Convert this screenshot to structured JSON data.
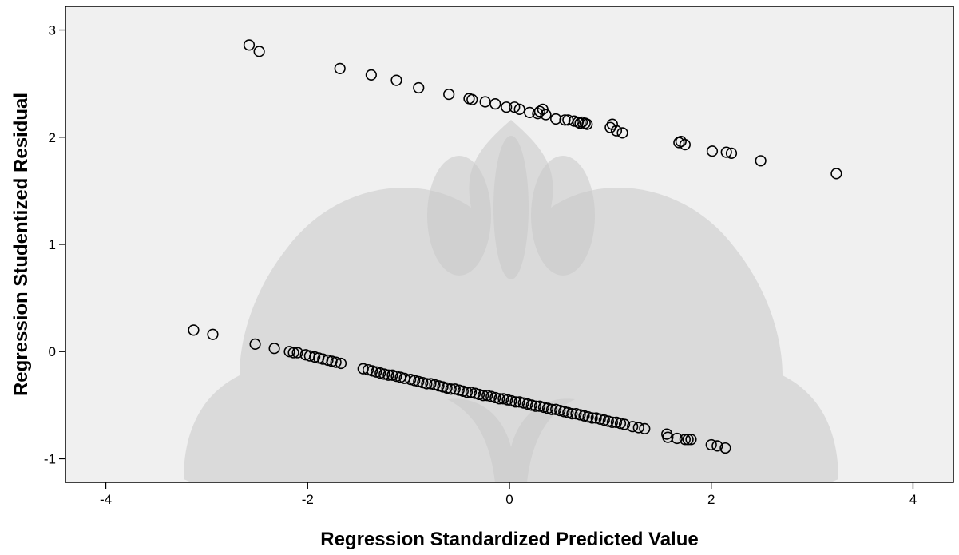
{
  "chart_data": {
    "type": "scatter",
    "title": "",
    "xlabel": "Regression Standardized Predicted Value",
    "ylabel": "Regression Studentized Residual",
    "xlim": [
      -4.4,
      4.4
    ],
    "ylim": [
      -1.22,
      3.22
    ],
    "xticks": [
      -4,
      -2,
      0,
      2,
      4
    ],
    "xtick_labels": [
      "-4",
      "-2",
      "0",
      "2",
      "4"
    ],
    "yticks": [
      -1,
      0,
      1,
      2,
      3
    ],
    "ytick_labels": [
      "-1",
      "0",
      "1",
      "2",
      "3"
    ],
    "grid": false,
    "background_color": "#f0f0f0",
    "marker": "open-circle",
    "series": [
      {
        "points": [
          [
            -2.58,
            2.86
          ],
          [
            -2.48,
            2.8
          ],
          [
            -1.68,
            2.64
          ],
          [
            -1.37,
            2.58
          ],
          [
            -1.12,
            2.53
          ],
          [
            -0.9,
            2.46
          ],
          [
            -0.6,
            2.4
          ],
          [
            -0.4,
            2.36
          ],
          [
            -0.37,
            2.35
          ],
          [
            -0.24,
            2.33
          ],
          [
            -0.14,
            2.31
          ],
          [
            -0.03,
            2.28
          ],
          [
            0.05,
            2.28
          ],
          [
            0.1,
            2.26
          ],
          [
            0.2,
            2.23
          ],
          [
            0.28,
            2.22
          ],
          [
            0.3,
            2.24
          ],
          [
            0.33,
            2.26
          ],
          [
            0.36,
            2.21
          ],
          [
            0.46,
            2.17
          ],
          [
            0.55,
            2.16
          ],
          [
            0.58,
            2.16
          ],
          [
            0.64,
            2.15
          ],
          [
            0.68,
            2.14
          ],
          [
            0.7,
            2.13
          ],
          [
            0.72,
            2.14
          ],
          [
            0.75,
            2.13
          ],
          [
            0.77,
            2.12
          ],
          [
            1.0,
            2.09
          ],
          [
            1.02,
            2.12
          ],
          [
            1.06,
            2.06
          ],
          [
            1.12,
            2.04
          ],
          [
            1.68,
            1.95
          ],
          [
            1.7,
            1.96
          ],
          [
            1.74,
            1.93
          ],
          [
            2.01,
            1.87
          ],
          [
            2.15,
            1.86
          ],
          [
            2.2,
            1.85
          ],
          [
            2.49,
            1.78
          ],
          [
            3.24,
            1.66
          ]
        ]
      },
      {
        "points": [
          [
            -3.13,
            0.2
          ],
          [
            -2.94,
            0.16
          ],
          [
            -2.52,
            0.07
          ],
          [
            -2.33,
            0.03
          ],
          [
            -2.18,
            0.0
          ],
          [
            -2.14,
            -0.01
          ],
          [
            -2.1,
            -0.01
          ],
          [
            -2.02,
            -0.03
          ],
          [
            -1.98,
            -0.04
          ],
          [
            -1.93,
            -0.05
          ],
          [
            -1.89,
            -0.06
          ],
          [
            -1.85,
            -0.07
          ],
          [
            -1.8,
            -0.08
          ],
          [
            -1.76,
            -0.09
          ],
          [
            -1.72,
            -0.1
          ],
          [
            -1.67,
            -0.11
          ],
          [
            -1.45,
            -0.16
          ],
          [
            -1.4,
            -0.17
          ],
          [
            -1.36,
            -0.18
          ],
          [
            -1.32,
            -0.19
          ],
          [
            -1.28,
            -0.2
          ],
          [
            -1.24,
            -0.21
          ],
          [
            -1.2,
            -0.22
          ],
          [
            -1.16,
            -0.22
          ],
          [
            -1.12,
            -0.23
          ],
          [
            -1.08,
            -0.24
          ],
          [
            -1.04,
            -0.25
          ],
          [
            -0.98,
            -0.26
          ],
          [
            -0.94,
            -0.27
          ],
          [
            -0.9,
            -0.28
          ],
          [
            -0.86,
            -0.29
          ],
          [
            -0.82,
            -0.3
          ],
          [
            -0.78,
            -0.3
          ],
          [
            -0.74,
            -0.31
          ],
          [
            -0.7,
            -0.32
          ],
          [
            -0.66,
            -0.33
          ],
          [
            -0.62,
            -0.34
          ],
          [
            -0.58,
            -0.35
          ],
          [
            -0.54,
            -0.35
          ],
          [
            -0.5,
            -0.36
          ],
          [
            -0.46,
            -0.37
          ],
          [
            -0.42,
            -0.38
          ],
          [
            -0.38,
            -0.38
          ],
          [
            -0.34,
            -0.39
          ],
          [
            -0.3,
            -0.4
          ],
          [
            -0.26,
            -0.41
          ],
          [
            -0.22,
            -0.41
          ],
          [
            -0.18,
            -0.42
          ],
          [
            -0.14,
            -0.43
          ],
          [
            -0.1,
            -0.44
          ],
          [
            -0.06,
            -0.44
          ],
          [
            -0.02,
            -0.45
          ],
          [
            0.02,
            -0.46
          ],
          [
            0.06,
            -0.47
          ],
          [
            0.1,
            -0.47
          ],
          [
            0.14,
            -0.48
          ],
          [
            0.18,
            -0.49
          ],
          [
            0.22,
            -0.5
          ],
          [
            0.26,
            -0.51
          ],
          [
            0.3,
            -0.51
          ],
          [
            0.34,
            -0.52
          ],
          [
            0.38,
            -0.53
          ],
          [
            0.42,
            -0.54
          ],
          [
            0.46,
            -0.54
          ],
          [
            0.5,
            -0.55
          ],
          [
            0.54,
            -0.56
          ],
          [
            0.58,
            -0.57
          ],
          [
            0.62,
            -0.58
          ],
          [
            0.66,
            -0.58
          ],
          [
            0.7,
            -0.59
          ],
          [
            0.74,
            -0.6
          ],
          [
            0.78,
            -0.61
          ],
          [
            0.82,
            -0.62
          ],
          [
            0.86,
            -0.62
          ],
          [
            0.9,
            -0.63
          ],
          [
            0.94,
            -0.64
          ],
          [
            0.98,
            -0.65
          ],
          [
            1.02,
            -0.66
          ],
          [
            1.06,
            -0.66
          ],
          [
            1.1,
            -0.67
          ],
          [
            1.14,
            -0.68
          ],
          [
            1.22,
            -0.7
          ],
          [
            1.28,
            -0.71
          ],
          [
            1.34,
            -0.72
          ],
          [
            1.56,
            -0.77
          ],
          [
            1.57,
            -0.8
          ],
          [
            1.66,
            -0.81
          ],
          [
            1.74,
            -0.82
          ],
          [
            1.77,
            -0.82
          ],
          [
            1.8,
            -0.82
          ],
          [
            2.0,
            -0.87
          ],
          [
            2.06,
            -0.88
          ],
          [
            2.14,
            -0.9
          ]
        ]
      }
    ]
  }
}
